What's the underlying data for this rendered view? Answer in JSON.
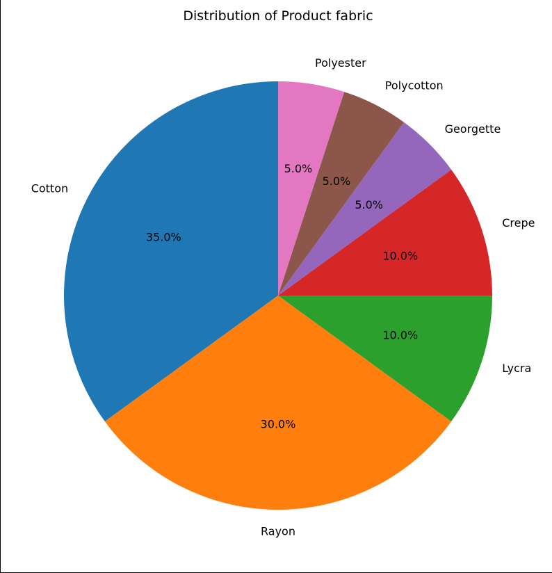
{
  "chart_data": {
    "type": "pie",
    "title": "Distribution of Product fabric",
    "start_angle_deg": 90,
    "direction": "counterclockwise",
    "slices": [
      {
        "label": "Cotton",
        "value": 35.0,
        "pct_label": "35.0%",
        "color": "#1f77b4"
      },
      {
        "label": "Rayon",
        "value": 30.0,
        "pct_label": "30.0%",
        "color": "#ff7f0e"
      },
      {
        "label": "Lycra",
        "value": 10.0,
        "pct_label": "10.0%",
        "color": "#2ca02c"
      },
      {
        "label": "Crepe",
        "value": 10.0,
        "pct_label": "10.0%",
        "color": "#d62728"
      },
      {
        "label": "Georgette",
        "value": 5.0,
        "pct_label": "5.0%",
        "color": "#9467bd"
      },
      {
        "label": "Polycotton",
        "value": 5.0,
        "pct_label": "5.0%",
        "color": "#8c564b"
      },
      {
        "label": "Polyester",
        "value": 5.0,
        "pct_label": "5.0%",
        "color": "#e377c2"
      }
    ]
  }
}
